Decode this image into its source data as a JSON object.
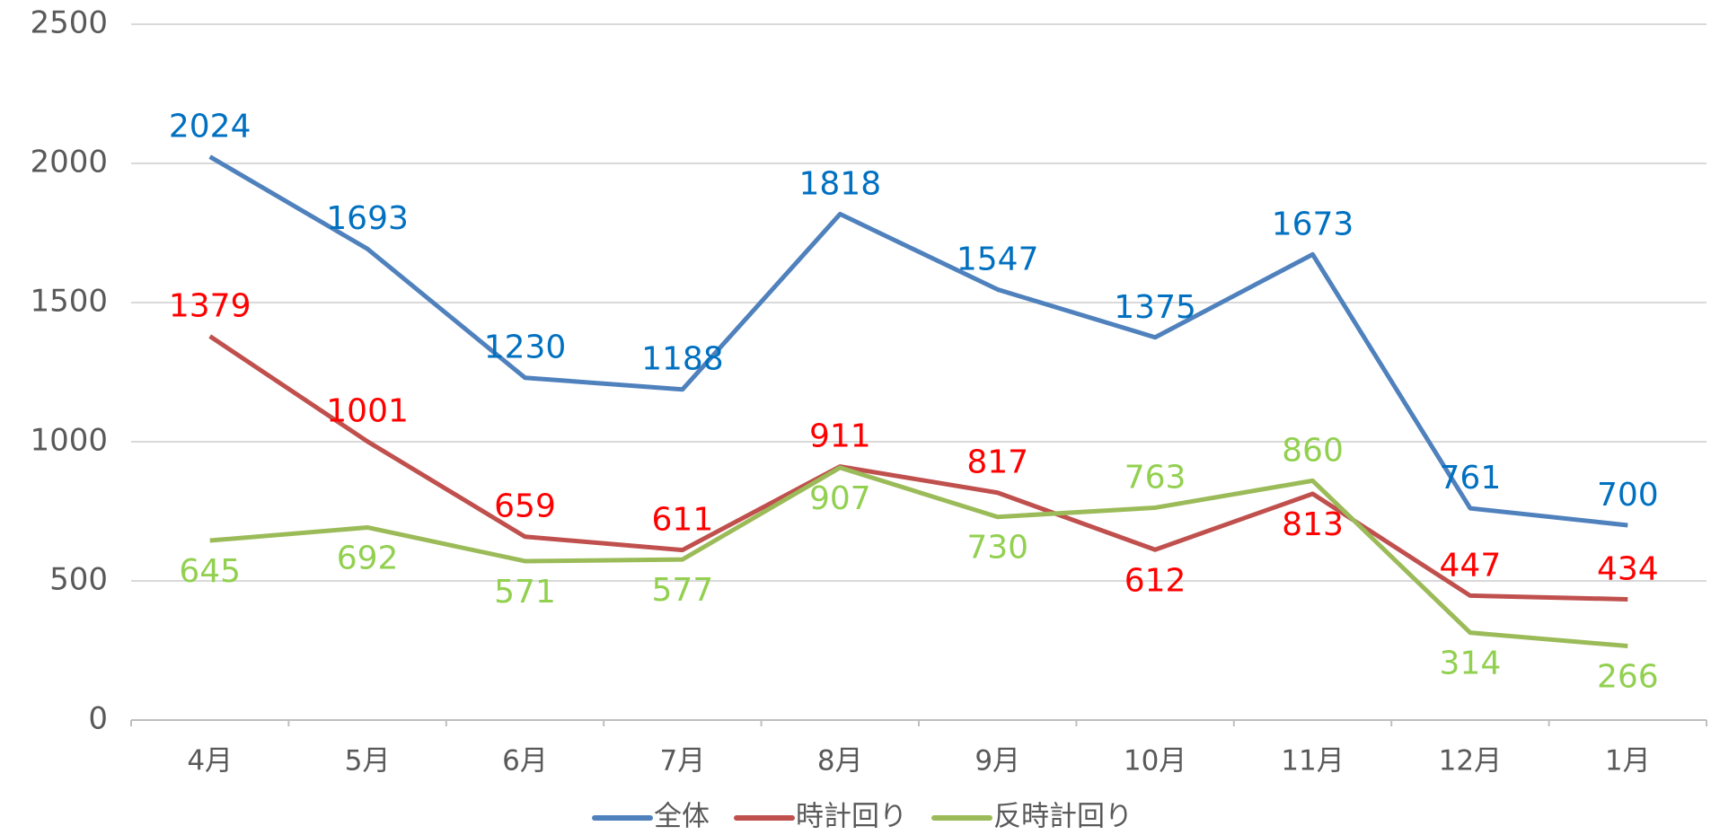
{
  "chart_data": {
    "type": "line",
    "categories": [
      "4月",
      "5月",
      "6月",
      "7月",
      "8月",
      "9月",
      "10月",
      "11月",
      "12月",
      "1月"
    ],
    "series": [
      {
        "name": "全体",
        "color": "#4f81bd",
        "label_color": "#0070c0",
        "values": [
          2024,
          1693,
          1230,
          1188,
          1818,
          1547,
          1375,
          1673,
          761,
          700
        ]
      },
      {
        "name": "時計回り",
        "color": "#c0504d",
        "label_color": "#ff0000",
        "values": [
          1379,
          1001,
          659,
          611,
          911,
          817,
          612,
          813,
          447,
          434
        ]
      },
      {
        "name": "反時計回り",
        "color": "#9bbb59",
        "label_color": "#92d050",
        "values": [
          645,
          692,
          571,
          577,
          907,
          730,
          763,
          860,
          314,
          266
        ]
      }
    ],
    "ylim": [
      0,
      2500
    ],
    "yticks": [
      0,
      500,
      1000,
      1500,
      2000,
      2500
    ],
    "grid": true,
    "legend": "bottom"
  }
}
